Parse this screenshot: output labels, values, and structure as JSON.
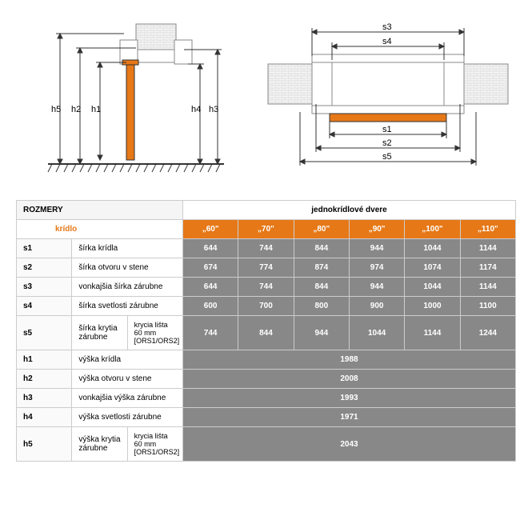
{
  "diagrams": {
    "colors": {
      "orange": "#e67817",
      "line": "#333333",
      "wall_fill": "#f0f0f0",
      "wall_stroke": "#999999"
    },
    "left": {
      "labels": [
        "h5",
        "h2",
        "h1",
        "h4",
        "h3"
      ]
    },
    "right": {
      "labels": [
        "s3",
        "s4",
        "s1",
        "s2",
        "s5"
      ]
    }
  },
  "table": {
    "title": "ROZMERY",
    "column_group": "jednokrídlové dvere",
    "kridlo_label": "krídlo",
    "size_headers": [
      "„60\"",
      "„70\"",
      "„80\"",
      "„90\"",
      "„100\"",
      "„110\""
    ],
    "rows": [
      {
        "key": "s1",
        "label": "šírka krídla",
        "note": "",
        "vals": [
          "644",
          "744",
          "844",
          "944",
          "1044",
          "1144"
        ]
      },
      {
        "key": "s2",
        "label": "šírka otvoru v stene",
        "note": "",
        "vals": [
          "674",
          "774",
          "874",
          "974",
          "1074",
          "1174"
        ]
      },
      {
        "key": "s3",
        "label": "vonkajšia šírka zárubne",
        "note": "",
        "vals": [
          "644",
          "744",
          "844",
          "944",
          "1044",
          "1144"
        ]
      },
      {
        "key": "s4",
        "label": "šírka svetlosti zárubne",
        "note": "",
        "vals": [
          "600",
          "700",
          "800",
          "900",
          "1000",
          "1100"
        ]
      },
      {
        "key": "s5",
        "label": "šírka krytia zárubne",
        "note": "krycia lišta 60 mm [ORS1/ORS2]",
        "vals": [
          "744",
          "844",
          "944",
          "1044",
          "1144",
          "1244"
        ]
      },
      {
        "key": "h1",
        "label": "výška krídla",
        "note": "",
        "span": "1988"
      },
      {
        "key": "h2",
        "label": "výška otvoru v stene",
        "note": "",
        "span": "2008"
      },
      {
        "key": "h3",
        "label": "vonkajšia výška zárubne",
        "note": "",
        "span": "1993"
      },
      {
        "key": "h4",
        "label": "výška svetlosti zárubne",
        "note": "",
        "span": "1971"
      },
      {
        "key": "h5",
        "label": "výška krytia zárubne",
        "note": "krycia lišta 60 mm [ORS1/ORS2]",
        "span": "2043"
      }
    ]
  }
}
